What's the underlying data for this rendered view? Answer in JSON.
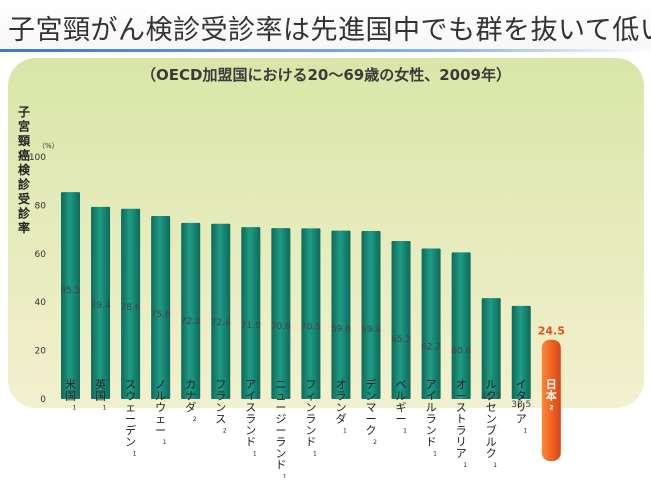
{
  "page": {
    "title": "子宮頸がん検診受診率は先進国中でも群を抜いて低い",
    "subtitle": "（OECD加盟国における20～69歳の女性、2009年）"
  },
  "colors": {
    "panel_top": "#d9e6a8",
    "panel_bottom": "#f3f0cf",
    "bar": "#1f9b86",
    "bar_dark": "#0d6a58",
    "highlight_bar": "#f26522",
    "highlight_text": "#e8501d",
    "title_rule": "#3a78c2"
  },
  "chart_data": {
    "type": "bar",
    "title": "（OECD加盟国における20～69歳の女性、2009年）",
    "ylabel": "子宮頸癌検診受診率",
    "yunit": "（%）",
    "ylim": [
      0,
      100
    ],
    "yticks": [
      0,
      20,
      40,
      60,
      80,
      100
    ],
    "grid": false,
    "categories": [
      {
        "name": "米国",
        "note": "1"
      },
      {
        "name": "英国",
        "note": "1"
      },
      {
        "name": "スウェーデン",
        "note": "1"
      },
      {
        "name": "ノルウェー",
        "note": "1"
      },
      {
        "name": "カナダ",
        "note": "2"
      },
      {
        "name": "フランス",
        "note": "2"
      },
      {
        "name": "アイスランド",
        "note": "1"
      },
      {
        "name": "ニュージーランド",
        "note": "1"
      },
      {
        "name": "フィンランド",
        "note": "1"
      },
      {
        "name": "オランダ",
        "note": "1"
      },
      {
        "name": "デンマーク",
        "note": "2"
      },
      {
        "name": "ベルギー",
        "note": "1"
      },
      {
        "name": "アイルランド",
        "note": "1"
      },
      {
        "name": "オーストラリア",
        "note": "1"
      },
      {
        "name": "ルクセンブルク",
        "note": "1"
      },
      {
        "name": "イタリア",
        "note": "1"
      },
      {
        "name": "日本",
        "note": "2"
      }
    ],
    "values": [
      85.5,
      79.4,
      78.6,
      75.6,
      72.8,
      72.4,
      71.0,
      70.6,
      70.5,
      69.6,
      69.4,
      65.3,
      62.2,
      60.6,
      41.7,
      38.5,
      24.5
    ],
    "value_labels": [
      "85.5",
      "79.4",
      "78.6",
      "75.6",
      "72.8",
      "72.4",
      "71.0",
      "70.6",
      "70.5",
      "69.6",
      "69.4",
      "65.3",
      "62.2",
      "60.6",
      "41.7",
      "38.5",
      "24.5"
    ],
    "highlight": "日本"
  }
}
